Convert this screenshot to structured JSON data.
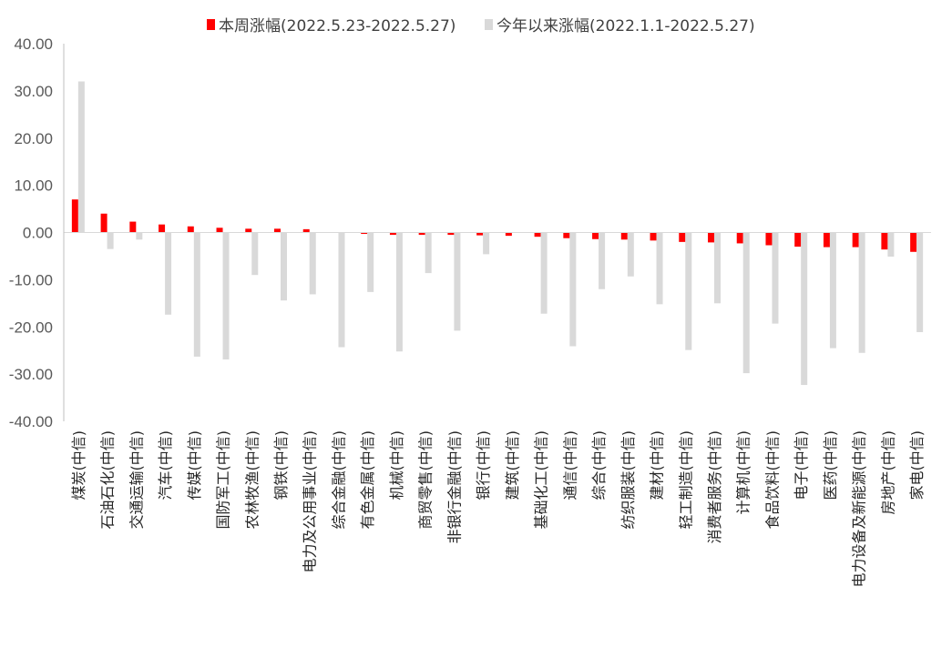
{
  "chart_data": {
    "type": "bar",
    "title": "",
    "xlabel": "",
    "ylabel": "",
    "ylim": [
      -40,
      40
    ],
    "yticks": [
      "40.00",
      "30.00",
      "20.00",
      "10.00",
      "0.00",
      "-10.00",
      "-20.00",
      "-30.00",
      "-40.00"
    ],
    "legend_position": "top",
    "categories": [
      "煤炭(中信)",
      "石油石化(中信)",
      "交通运输(中信)",
      "汽车(中信)",
      "传媒(中信)",
      "国防军工(中信)",
      "农林牧渔(中信)",
      "钢铁(中信)",
      "电力及公用事业(中信)",
      "综合金融(中信)",
      "有色金属(中信)",
      "机械(中信)",
      "商贸零售(中信)",
      "非银行金融(中信)",
      "银行(中信)",
      "建筑(中信)",
      "基础化工(中信)",
      "通信(中信)",
      "综合(中信)",
      "纺织服装(中信)",
      "建材(中信)",
      "轻工制造(中信)",
      "消费者服务(中信)",
      "计算机(中信)",
      "食品饮料(中信)",
      "电子(中信)",
      "医药(中信)",
      "电力设备及新能源(中信)",
      "房地产(中信)",
      "家电(中信)"
    ],
    "series": [
      {
        "name": "本周涨幅(2022.5.23-2022.5.27)",
        "color": "#ff0000",
        "values": [
          7.0,
          4.0,
          2.3,
          1.7,
          1.3,
          1.0,
          0.8,
          0.8,
          0.7,
          0.0,
          -0.3,
          -0.5,
          -0.5,
          -0.5,
          -0.6,
          -0.7,
          -0.9,
          -1.2,
          -1.4,
          -1.5,
          -1.7,
          -2.0,
          -2.1,
          -2.3,
          -2.7,
          -3.0,
          -3.1,
          -3.1,
          -3.6,
          -4.1
        ]
      },
      {
        "name": "今年以来涨幅(2022.1.1-2022.5.27)",
        "color": "#d9d9d9",
        "values": [
          32.0,
          -3.5,
          -1.5,
          -17.4,
          -26.3,
          -26.9,
          -9.0,
          -14.4,
          -13.1,
          -24.3,
          -12.6,
          -25.2,
          -8.6,
          -20.8,
          -4.6,
          0.0,
          -17.2,
          -24.1,
          -12.0,
          -9.3,
          -15.2,
          -24.9,
          -15.0,
          -29.8,
          -19.3,
          -32.3,
          -24.5,
          -25.5,
          -5.1,
          -21.1
        ]
      }
    ]
  }
}
